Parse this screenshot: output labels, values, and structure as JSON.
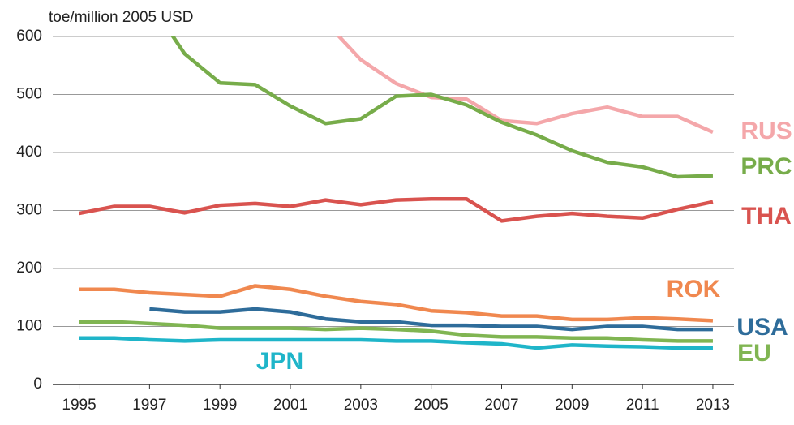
{
  "chart_data": {
    "type": "line",
    "y_axis_label": "toe/million 2005 USD",
    "x": [
      1995,
      1996,
      1997,
      1998,
      1999,
      2000,
      2001,
      2002,
      2003,
      2004,
      2005,
      2006,
      2007,
      2008,
      2009,
      2010,
      2011,
      2012,
      2013
    ],
    "xlim": [
      1994.25,
      2013.6
    ],
    "xticks": [
      1995,
      1997,
      1999,
      2001,
      2003,
      2005,
      2007,
      2009,
      2011,
      2013
    ],
    "ylim": [
      0,
      600
    ],
    "yticks": [
      0,
      100,
      200,
      300,
      400,
      500,
      600
    ],
    "grid": true,
    "series": [
      {
        "name": "RUS",
        "color": "#f4a7aa",
        "values": [
          null,
          null,
          null,
          null,
          null,
          null,
          null,
          625,
          560,
          519,
          495,
          492,
          455,
          450,
          467,
          478,
          462,
          462,
          435
        ]
      },
      {
        "name": "PRC",
        "color": "#77ac4a",
        "values": [
          null,
          null,
          660,
          570,
          520,
          517,
          480,
          450,
          458,
          497,
          500,
          482,
          452,
          430,
          403,
          383,
          375,
          358,
          360
        ]
      },
      {
        "name": "THA",
        "color": "#d9534f",
        "values": [
          295,
          307,
          307,
          296,
          309,
          312,
          307,
          318,
          310,
          318,
          320,
          320,
          282,
          290,
          295,
          290,
          287,
          302,
          315
        ]
      },
      {
        "name": "ROK",
        "color": "#f0884f",
        "values": [
          164,
          164,
          158,
          155,
          152,
          170,
          164,
          152,
          143,
          138,
          127,
          124,
          118,
          118,
          112,
          112,
          115,
          113,
          110
        ]
      },
      {
        "name": "USA",
        "color": "#2e6c9a",
        "values": [
          null,
          null,
          130,
          125,
          125,
          130,
          125,
          113,
          108,
          108,
          102,
          102,
          100,
          100,
          95,
          100,
          100,
          95,
          95
        ]
      },
      {
        "name": "EU",
        "color": "#80b552",
        "values": [
          108,
          108,
          105,
          102,
          97,
          97,
          97,
          95,
          97,
          95,
          92,
          85,
          82,
          82,
          80,
          80,
          77,
          75,
          75
        ]
      },
      {
        "name": "JPN",
        "color": "#1fb5c9",
        "values": [
          80,
          80,
          77,
          75,
          77,
          77,
          77,
          77,
          77,
          75,
          75,
          72,
          70,
          63,
          68,
          66,
          65,
          63,
          63
        ]
      }
    ]
  }
}
